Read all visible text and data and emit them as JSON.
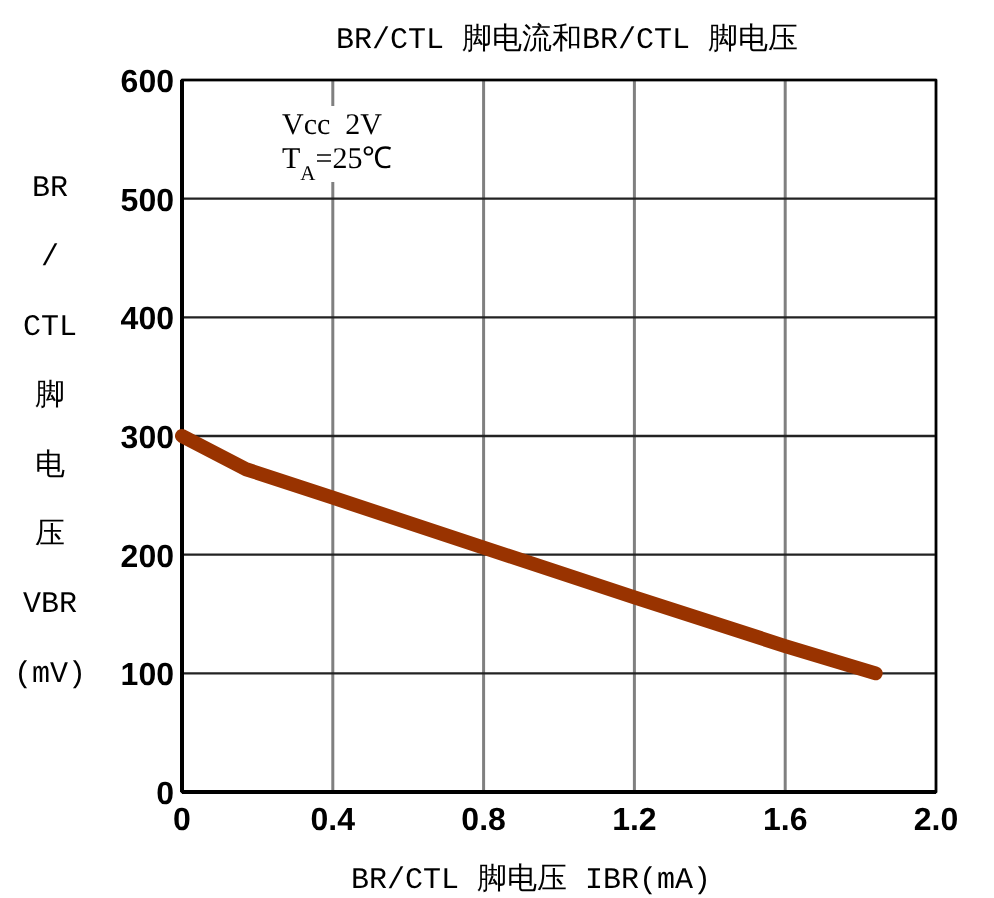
{
  "chart_data": {
    "type": "line",
    "title": "BR/CTL 脚电流和BR/CTL 脚电压",
    "xlabel": "BR/CTL 脚电压 IBR(mA)",
    "ylabel": "BR/CTL 脚电压 VBR(mV)",
    "annotations": [
      "Vcc  2V",
      "T$_{A}$=25℃"
    ],
    "x": [
      0,
      0.17,
      0.4,
      0.8,
      1.2,
      1.6,
      1.84
    ],
    "series": [
      {
        "color": "#993300",
        "values": [
          300,
          272,
          248,
          206,
          164,
          123,
          100
        ]
      }
    ],
    "xlim": [
      0,
      2
    ],
    "ylim": [
      0,
      600
    ],
    "xticks": [
      0,
      0.4,
      0.8,
      1.2,
      1.6,
      {
        "value": 2,
        "label": "2.0"
      }
    ],
    "yticks": [
      0,
      100,
      200,
      300,
      400,
      500,
      600
    ],
    "grid": true,
    "line_style": "solid"
  }
}
